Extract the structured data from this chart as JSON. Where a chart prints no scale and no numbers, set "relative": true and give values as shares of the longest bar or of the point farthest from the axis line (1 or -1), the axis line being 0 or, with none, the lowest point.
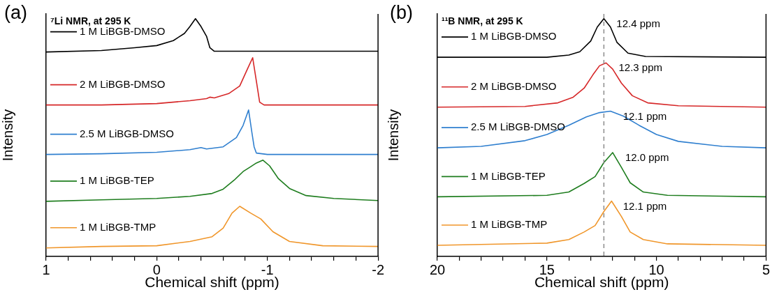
{
  "chart_data": [
    {
      "type": "line",
      "title": "(a)",
      "xlabel": "Chemical shift (ppm)",
      "ylabel": "Intensity",
      "relative": true,
      "xlim": [
        1,
        -2
      ],
      "xticks": [
        1,
        {
          "value": 0.8,
          "label": null
        },
        {
          "value": 0.6,
          "label": null
        },
        {
          "value": 0.4,
          "label": null
        },
        {
          "value": 0.2,
          "label": null
        },
        0,
        {
          "value": -0.2,
          "label": null
        },
        {
          "value": -0.4,
          "label": null
        },
        {
          "value": -0.6,
          "label": null
        },
        {
          "value": -0.8,
          "label": null
        },
        -1,
        {
          "value": -1.2,
          "label": null
        },
        {
          "value": -1.4,
          "label": null
        },
        {
          "value": -1.6,
          "label": null
        },
        {
          "value": -1.8,
          "label": null
        },
        -2
      ],
      "tick_labels": "x",
      "grid": false,
      "legend": "left",
      "marker": "none",
      "line_style": "solid",
      "annotations": [
        "⁷Li NMR, at 295 K"
      ],
      "series": [
        {
          "name": "1 M LiBGB-DMSO",
          "color": "#000000",
          "x": [
            1,
            0.5,
            0.2,
            0,
            -0.15,
            -0.25,
            -0.3,
            -0.35,
            -0.4,
            -0.45,
            -0.48,
            -0.52,
            -1,
            -2
          ],
          "values": [
            0.86,
            0.866,
            0.878,
            0.887,
            0.908,
            0.938,
            0.967,
            1,
            0.967,
            0.926,
            0.878,
            0.863,
            0.863,
            0.863
          ]
        },
        {
          "name": "2 M LiBGB-DMSO",
          "color": "#d62728",
          "x": [
            1,
            0.5,
            0,
            -0.3,
            -0.45,
            -0.48,
            -0.52,
            -0.65,
            -0.75,
            -0.82,
            -0.867,
            -0.9,
            -0.93,
            -0.97,
            -2
          ],
          "values": [
            0.637,
            0.637,
            0.643,
            0.655,
            0.664,
            0.67,
            0.667,
            0.685,
            0.717,
            0.789,
            0.836,
            0.738,
            0.649,
            0.637,
            0.637
          ]
        },
        {
          "name": "2.5 M LiBGB-DMSO",
          "color": "#2f7fcf",
          "x": [
            1,
            0.5,
            0,
            -0.3,
            -0.4,
            -0.45,
            -0.6,
            -0.72,
            -0.78,
            -0.83,
            -0.86,
            -0.88,
            -0.9,
            -1,
            -2
          ],
          "values": [
            0.429,
            0.432,
            0.438,
            0.449,
            0.458,
            0.452,
            0.461,
            0.5,
            0.551,
            0.616,
            0.521,
            0.461,
            0.435,
            0.429,
            0.429
          ]
        },
        {
          "name": "1 M LiBGB-TEP",
          "color": "#1e7d1e",
          "x": [
            1,
            0.5,
            0,
            -0.3,
            -0.5,
            -0.6,
            -0.7,
            -0.78,
            -0.84,
            -0.9,
            -0.96,
            -1.02,
            -1.1,
            -1.2,
            -1.35,
            -1.6,
            -2
          ],
          "values": [
            0.232,
            0.238,
            0.244,
            0.253,
            0.265,
            0.283,
            0.321,
            0.357,
            0.375,
            0.393,
            0.405,
            0.381,
            0.327,
            0.286,
            0.256,
            0.244,
            0.235
          ]
        },
        {
          "name": "1 M LiBGB-TMP",
          "color": "#f0962a",
          "x": [
            1,
            0.5,
            0,
            -0.3,
            -0.5,
            -0.6,
            -0.68,
            -0.75,
            -0.85,
            -0.94,
            -1.05,
            -1.2,
            -1.5,
            -2
          ],
          "values": [
            0.036,
            0.042,
            0.045,
            0.063,
            0.083,
            0.119,
            0.182,
            0.211,
            0.182,
            0.158,
            0.104,
            0.063,
            0.045,
            0.042
          ]
        }
      ]
    },
    {
      "type": "line",
      "title": "(b)",
      "xlabel": "Chemical shift (ppm)",
      "ylabel": "Intensity",
      "relative": true,
      "xlim": [
        20,
        5
      ],
      "xticks": [
        20,
        {
          "value": 19,
          "label": null
        },
        {
          "value": 18,
          "label": null
        },
        {
          "value": 17,
          "label": null
        },
        {
          "value": 16,
          "label": null
        },
        15,
        {
          "value": 14,
          "label": null
        },
        {
          "value": 13,
          "label": null
        },
        {
          "value": 12,
          "label": null
        },
        {
          "value": 11,
          "label": null
        },
        10,
        {
          "value": 9,
          "label": null
        },
        {
          "value": 8,
          "label": null
        },
        {
          "value": 7,
          "label": null
        },
        {
          "value": 6,
          "label": null
        },
        5
      ],
      "tick_labels": "x",
      "grid": false,
      "legend": "left",
      "marker": "none",
      "line_style": "solid",
      "ref_lines": [
        {
          "axis": "x",
          "value": 12.4,
          "color": "#8c8c8c",
          "line_style": "dashed"
        }
      ],
      "annotations": [
        "¹¹B NMR, at 295 K",
        {
          "text": "12.4 ppm",
          "x": 12.4,
          "y": 1
        },
        {
          "text": "12.3 ppm",
          "x": 12.3,
          "y": 0.814
        },
        {
          "text": "12.1 ppm",
          "x": 12.1,
          "y": 0.611
        },
        {
          "text": "12.0 ppm",
          "x": 12.0,
          "y": 0.437
        },
        {
          "text": "12.1 ppm",
          "x": 12.1,
          "y": 0.233
        }
      ],
      "series": [
        {
          "name": "1 M LiBGB-DMSO",
          "color": "#000000",
          "x": [
            20,
            15,
            14,
            13.5,
            13,
            12.7,
            12.4,
            12.1,
            11.8,
            11.3,
            10.5,
            5
          ],
          "values": [
            0.838,
            0.838,
            0.847,
            0.861,
            0.906,
            0.965,
            1,
            0.965,
            0.9,
            0.855,
            0.841,
            0.838
          ]
        },
        {
          "name": "2 M LiBGB-DMSO",
          "color": "#d62728",
          "x": [
            20,
            16,
            14.5,
            13.8,
            13.3,
            12.9,
            12.6,
            12.3,
            12,
            11.6,
            11.1,
            10.4,
            9,
            5
          ],
          "values": [
            0.628,
            0.631,
            0.646,
            0.67,
            0.708,
            0.764,
            0.802,
            0.814,
            0.788,
            0.729,
            0.676,
            0.646,
            0.634,
            0.628
          ]
        },
        {
          "name": "2.5 M LiBGB-DMSO",
          "color": "#2f7fcf",
          "x": [
            20,
            18,
            16,
            15,
            14,
            13.2,
            12.6,
            12.1,
            11.5,
            10.8,
            10,
            9,
            7,
            5
          ],
          "values": [
            0.457,
            0.463,
            0.487,
            0.513,
            0.552,
            0.587,
            0.605,
            0.611,
            0.59,
            0.552,
            0.513,
            0.484,
            0.463,
            0.457
          ]
        },
        {
          "name": "1 M LiBGB-TEP",
          "color": "#1e7d1e",
          "x": [
            20,
            15,
            14,
            13.3,
            12.8,
            12.4,
            12,
            11.6,
            11.2,
            10.6,
            9.5,
            5
          ],
          "values": [
            0.251,
            0.257,
            0.271,
            0.307,
            0.336,
            0.395,
            0.437,
            0.375,
            0.31,
            0.271,
            0.257,
            0.251
          ]
        },
        {
          "name": "1 M LiBGB-TMP",
          "color": "#f0962a",
          "x": [
            20,
            15,
            14,
            13.3,
            12.8,
            12.4,
            12.05,
            11.6,
            11.2,
            10.6,
            9.5,
            5
          ],
          "values": [
            0.047,
            0.056,
            0.071,
            0.103,
            0.13,
            0.189,
            0.233,
            0.168,
            0.103,
            0.071,
            0.053,
            0.047
          ]
        }
      ]
    }
  ]
}
